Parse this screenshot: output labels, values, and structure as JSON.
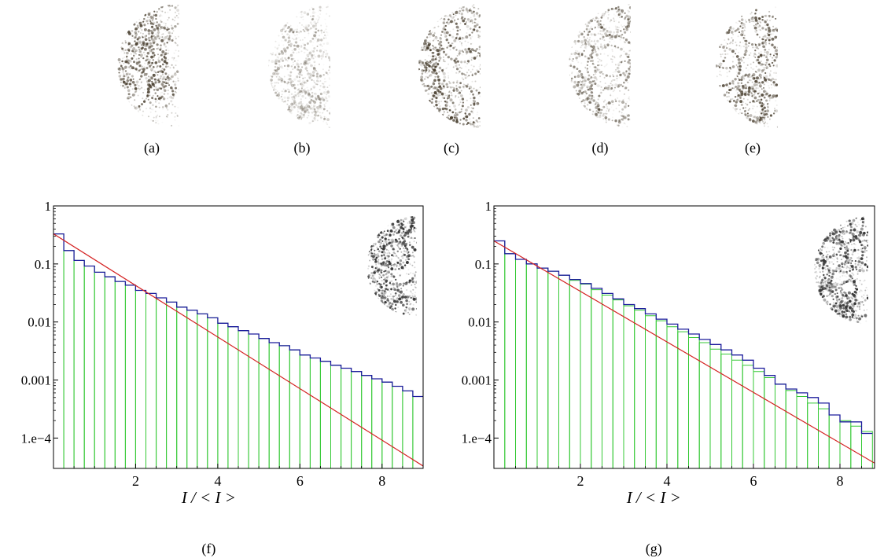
{
  "patterns": {
    "labels": [
      "(a)",
      "(b)",
      "(c)",
      "(d)",
      "(e)"
    ],
    "intensity": [
      "dark",
      "faint",
      "dark",
      "medium",
      "dark"
    ]
  },
  "chart_data": [
    {
      "type": "bar",
      "panel_label": "(f)",
      "xlabel": "I / < I >",
      "ylabel": "",
      "y_scale": "log",
      "xlim": [
        0,
        9
      ],
      "ylim": [
        3e-05,
        1
      ],
      "x_ticks": [
        2,
        4,
        6,
        8
      ],
      "y_ticks": [
        {
          "value": 1,
          "label": "1"
        },
        {
          "value": 0.1,
          "label": "0.1"
        },
        {
          "value": 0.01,
          "label": "0.01"
        },
        {
          "value": 0.001,
          "label": "0.001"
        },
        {
          "value": 0.0001,
          "label": "1.e−4"
        }
      ],
      "bin_width": 0.25,
      "x": [
        0.125,
        0.375,
        0.625,
        0.875,
        1.125,
        1.375,
        1.625,
        1.875,
        2.125,
        2.375,
        2.625,
        2.875,
        3.125,
        3.375,
        3.625,
        3.875,
        4.125,
        4.375,
        4.625,
        4.875,
        5.125,
        5.375,
        5.625,
        5.875,
        6.125,
        6.375,
        6.625,
        6.875,
        7.125,
        7.375,
        7.625,
        7.875,
        8.125,
        8.375,
        8.625,
        8.875
      ],
      "series": [
        {
          "style": "green-bars",
          "color": "#35c935",
          "values": [
            0.33,
            0.17,
            0.115,
            0.092,
            0.072,
            0.06,
            0.05,
            0.043,
            0.035,
            0.031,
            0.026,
            0.022,
            0.018,
            0.016,
            0.0138,
            0.0118,
            0.0095,
            0.0083,
            0.0071,
            0.0062,
            0.0052,
            0.0044,
            0.0039,
            0.0033,
            0.0027,
            0.0024,
            0.0021,
            0.0018,
            0.0016,
            0.0014,
            0.0012,
            0.00105,
            0.00092,
            0.00078,
            0.00065,
            0.00052
          ]
        },
        {
          "style": "blue-step",
          "color": "#1c1c9c",
          "values": [
            0.33,
            0.17,
            0.115,
            0.092,
            0.072,
            0.06,
            0.05,
            0.043,
            0.035,
            0.031,
            0.026,
            0.022,
            0.018,
            0.016,
            0.0138,
            0.0118,
            0.0095,
            0.0083,
            0.0071,
            0.0062,
            0.0052,
            0.0044,
            0.0039,
            0.0033,
            0.0027,
            0.0024,
            0.0021,
            0.0018,
            0.0016,
            0.0014,
            0.0012,
            0.00105,
            0.00092,
            0.00078,
            0.00065,
            0.00052
          ]
        },
        {
          "style": "red-exponential",
          "color": "#d42020",
          "fit": {
            "x_start": 0,
            "y_start": 0.33,
            "x_end": 9,
            "y_end": 3.3e-05
          }
        }
      ],
      "inset": "dense"
    },
    {
      "type": "bar",
      "panel_label": "(g)",
      "xlabel": "I / < I >",
      "ylabel": "",
      "y_scale": "log",
      "xlim": [
        0,
        8.8
      ],
      "ylim": [
        3e-05,
        1
      ],
      "x_ticks": [
        2,
        4,
        6,
        8
      ],
      "y_ticks": [
        {
          "value": 1,
          "label": "1"
        },
        {
          "value": 0.1,
          "label": "0.1"
        },
        {
          "value": 0.01,
          "label": "0.01"
        },
        {
          "value": 0.001,
          "label": "0.001"
        },
        {
          "value": 0.0001,
          "label": "1.e−4"
        }
      ],
      "bin_width": 0.25,
      "x": [
        0.125,
        0.375,
        0.625,
        0.875,
        1.125,
        1.375,
        1.625,
        1.875,
        2.125,
        2.375,
        2.625,
        2.875,
        3.125,
        3.375,
        3.625,
        3.875,
        4.125,
        4.375,
        4.625,
        4.875,
        5.125,
        5.375,
        5.625,
        5.875,
        6.125,
        6.375,
        6.625,
        6.875,
        7.125,
        7.375,
        7.625,
        7.875,
        8.125,
        8.375,
        8.625
      ],
      "series": [
        {
          "style": "green-bars",
          "color": "#35c935",
          "values": [
            0.25,
            0.15,
            0.12,
            0.1,
            0.085,
            0.075,
            0.064,
            0.052,
            0.045,
            0.036,
            0.029,
            0.024,
            0.019,
            0.016,
            0.0128,
            0.0105,
            0.0083,
            0.0068,
            0.0054,
            0.0044,
            0.0034,
            0.0028,
            0.0022,
            0.0018,
            0.0014,
            0.0011,
            0.00085,
            0.00066,
            0.00052,
            0.0004,
            0.00032,
            0.00025,
            0.0002,
            0.00016,
            0.00013
          ]
        },
        {
          "style": "blue-step",
          "color": "#1c1c9c",
          "values": [
            0.25,
            0.15,
            0.12,
            0.1,
            0.085,
            0.075,
            0.064,
            0.054,
            0.046,
            0.038,
            0.031,
            0.025,
            0.02,
            0.017,
            0.0138,
            0.0112,
            0.0092,
            0.0075,
            0.0062,
            0.005,
            0.0041,
            0.0033,
            0.0027,
            0.0022,
            0.0016,
            0.0012,
            0.00085,
            0.0007,
            0.0006,
            0.0005,
            0.0004,
            0.00025,
            0.00019,
            0.00019,
            0.00012
          ]
        },
        {
          "style": "red-exponential",
          "color": "#d42020",
          "fit": {
            "x_start": 0,
            "y_start": 0.25,
            "x_end": 8.8,
            "y_end": 3.7e-05
          }
        }
      ],
      "inset": "dense"
    }
  ]
}
